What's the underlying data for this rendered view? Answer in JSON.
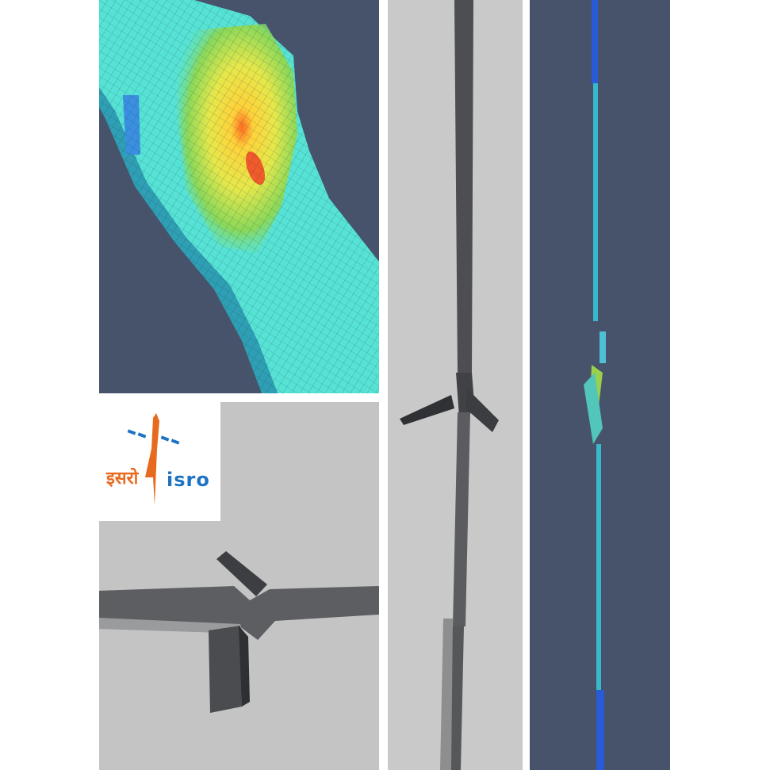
{
  "logo": {
    "name_hindi": "इसरो",
    "name_english": "isro",
    "colors": {
      "orange": "#e86a1f",
      "blue": "#1f73c4"
    }
  },
  "panels": {
    "fea_3d": {
      "background": "#46536b"
    },
    "photo_lap_joint": {
      "background": "#c6c6c6"
    },
    "photo_strip": {
      "background": "#c9c9c9"
    },
    "fea_strip": {
      "background": "#47536b"
    }
  }
}
